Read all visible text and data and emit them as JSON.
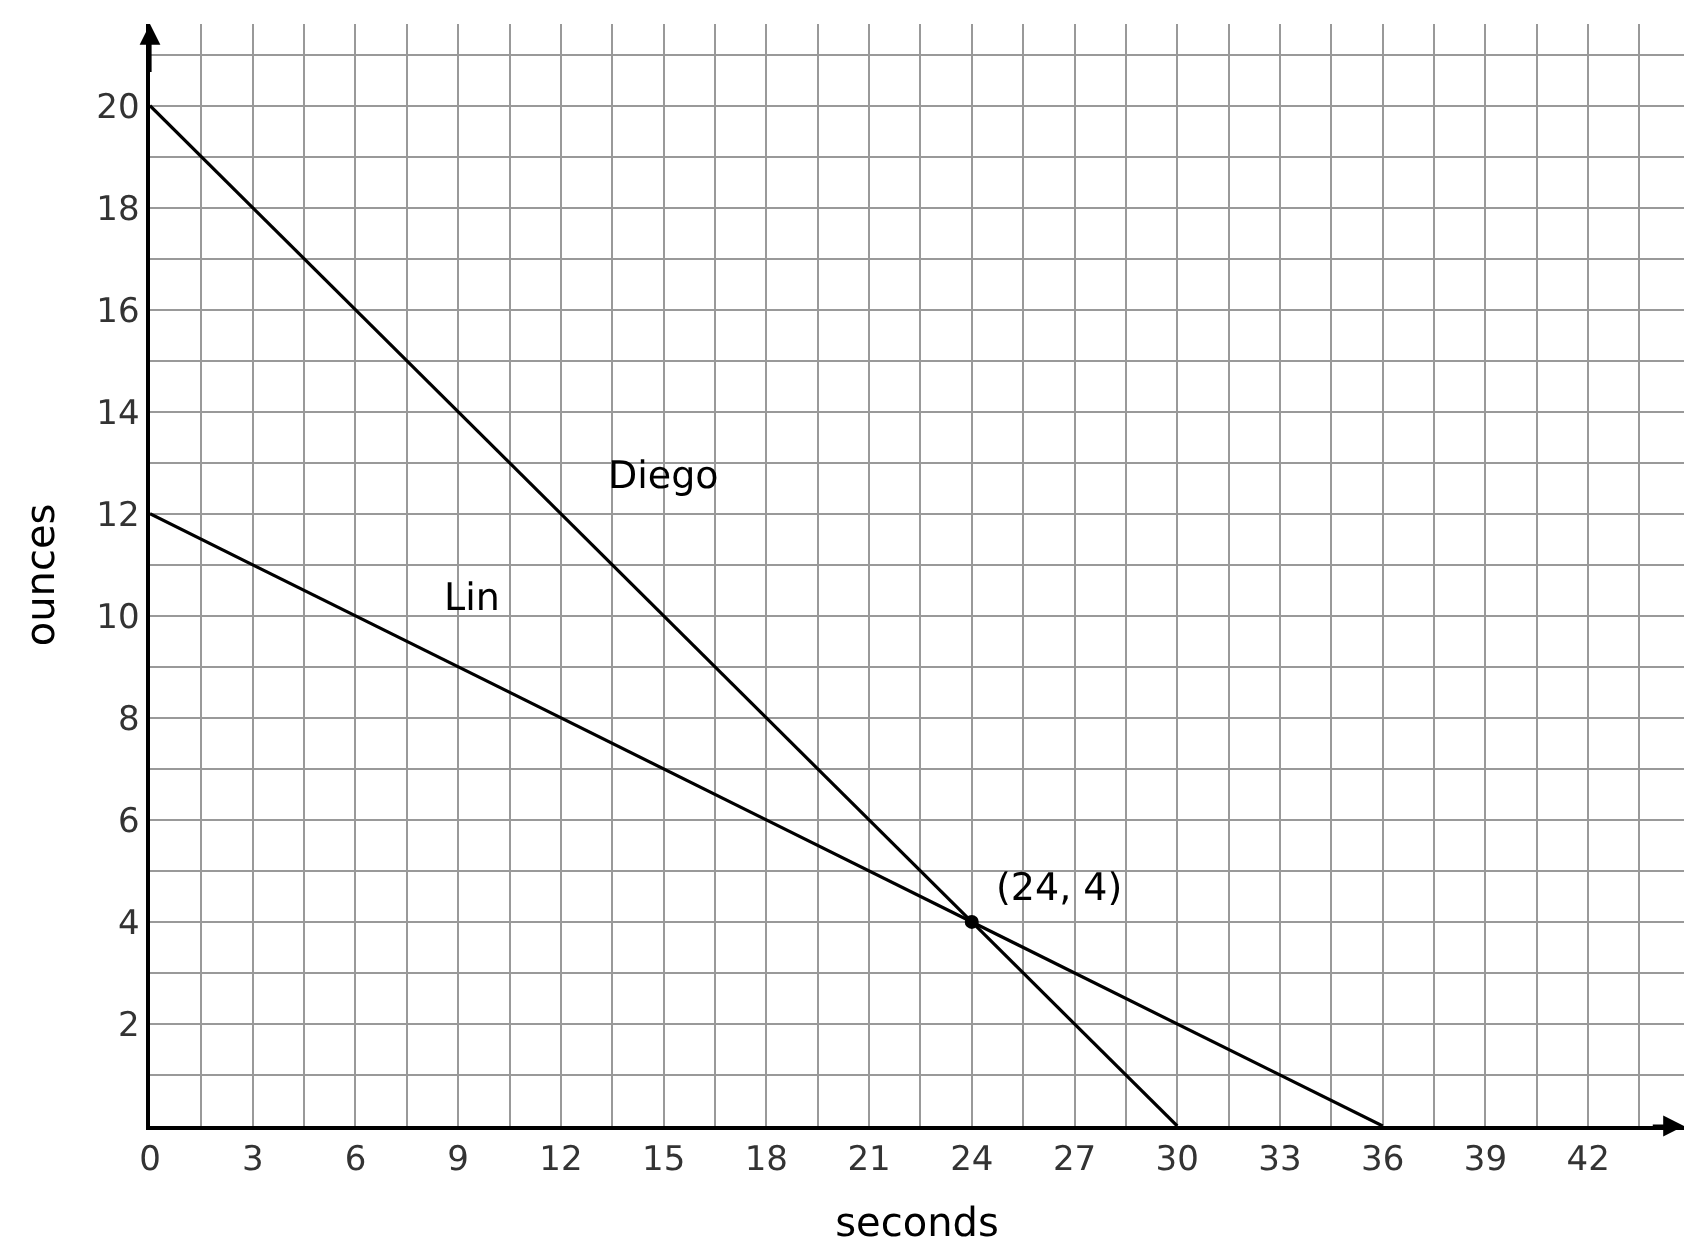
{
  "chart_data": {
    "type": "line",
    "xlabel": "seconds",
    "ylabel": "ounces",
    "xlim": [
      0,
      44.8
    ],
    "ylim": [
      0,
      21.6
    ],
    "xticks": [
      {
        "value": 0,
        "label": "0"
      },
      {
        "value": 1.5,
        "label": null
      },
      3,
      {
        "value": 4.5,
        "label": null
      },
      6,
      {
        "value": 7.5,
        "label": null
      },
      9,
      {
        "value": 10.5,
        "label": null
      },
      12,
      {
        "value": 13.5,
        "label": null
      },
      15,
      {
        "value": 16.5,
        "label": null
      },
      18,
      {
        "value": 19.5,
        "label": null
      },
      21,
      {
        "value": 22.5,
        "label": null
      },
      24,
      {
        "value": 25.5,
        "label": null
      },
      27,
      {
        "value": 28.5,
        "label": null
      },
      30,
      {
        "value": 31.5,
        "label": null
      },
      33,
      {
        "value": 34.5,
        "label": null
      },
      36,
      {
        "value": 37.5,
        "label": null
      },
      39,
      {
        "value": 40.5,
        "label": null
      },
      42,
      {
        "value": 43.5,
        "label": null
      }
    ],
    "yticks": [
      {
        "value": 1,
        "label": null
      },
      2,
      {
        "value": 3,
        "label": null
      },
      4,
      {
        "value": 5,
        "label": null
      },
      6,
      {
        "value": 7,
        "label": null
      },
      8,
      {
        "value": 9,
        "label": null
      },
      10,
      {
        "value": 11,
        "label": null
      },
      12,
      {
        "value": 13,
        "label": null
      },
      14,
      {
        "value": 15,
        "label": null
      },
      16,
      {
        "value": 17,
        "label": null
      },
      18,
      {
        "value": 19,
        "label": null
      },
      20,
      {
        "value": 21,
        "label": null
      }
    ],
    "grid": true,
    "series": [
      {
        "name": "Diego",
        "color": "#000000",
        "x": [
          0,
          30
        ],
        "values": [
          20,
          0
        ]
      },
      {
        "name": "Lin",
        "color": "#000000",
        "x": [
          0,
          36
        ],
        "values": [
          12,
          0
        ]
      },
      {
        "type": "scatter",
        "marker": "circle",
        "color": "#000000",
        "x": [
          24
        ],
        "values": [
          4
        ]
      }
    ],
    "annotations": [
      {
        "text": "(24, 4)",
        "x": 24,
        "y": 4
      }
    ]
  }
}
